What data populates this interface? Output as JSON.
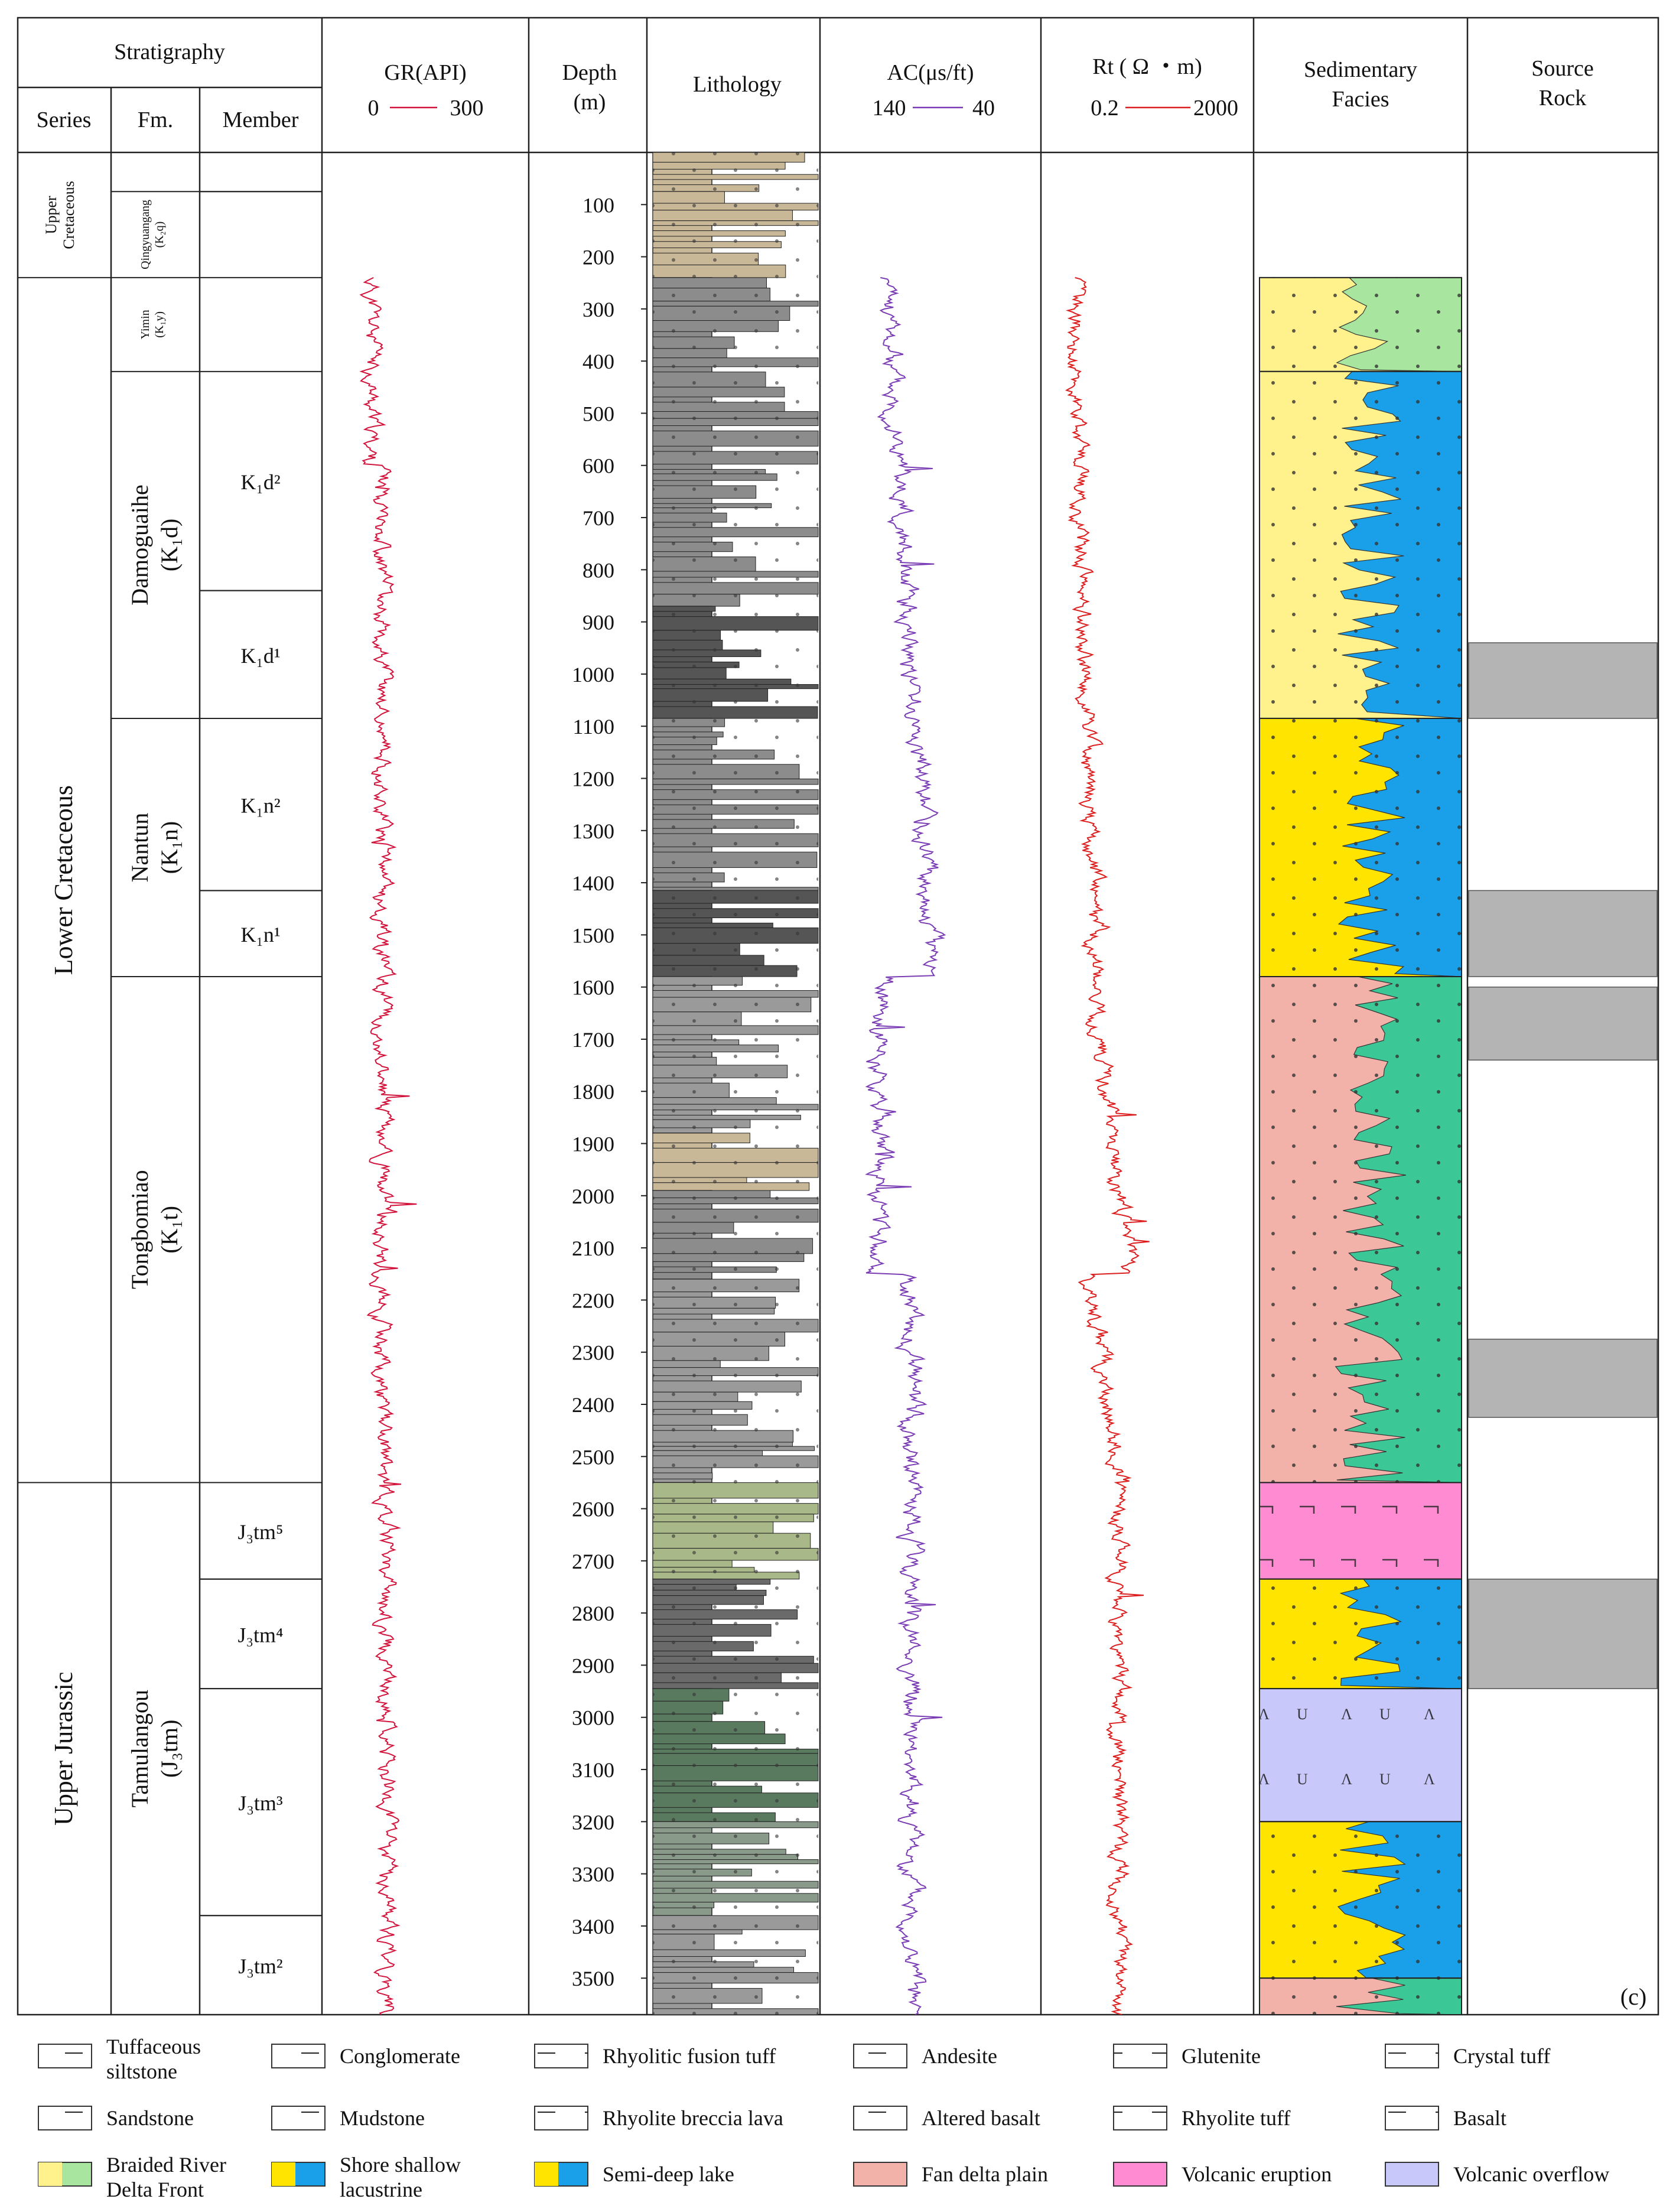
{
  "header": {
    "stratigraphy": "Stratigraphy",
    "series": "Series",
    "fm": "Fm.",
    "member": "Member",
    "gr_title": "GR(API)",
    "gr_min": "0",
    "gr_max": "300",
    "depth_title": "Depth",
    "depth_unit": "(m)",
    "lithology": "Lithology",
    "ac_title": "AC(μs/ft)",
    "ac_left": "140",
    "ac_right": "40",
    "rt_title": "Rt ( Ω ・m)",
    "rt_min": "0.2",
    "rt_max": "2000",
    "facies_line1": "Sedimentary",
    "facies_line2": "Facies",
    "source_line1": "Source",
    "source_line2": "Rock"
  },
  "series": [
    {
      "label_line1": "Upper",
      "label_line2": "Cretaceous",
      "top": 0,
      "bottom": 240
    },
    {
      "label_line1": "Lower Cretaceous",
      "label_line2": "",
      "top": 240,
      "bottom": 2550
    },
    {
      "label_line1": "Upper Jurassic",
      "label_line2": "",
      "top": 2550,
      "bottom": 3570
    }
  ],
  "formations": [
    {
      "name": "Qingyuangang",
      "code": "(K₂q)",
      "top": 75,
      "bottom": 240
    },
    {
      "name": "Yimin",
      "code": "(K₁y)",
      "top": 240,
      "bottom": 420
    },
    {
      "name": "Damoguaihe",
      "code": "(K₁d)",
      "top": 420,
      "bottom": 1085
    },
    {
      "name": "Nantun",
      "code": "(K₁n)",
      "top": 1085,
      "bottom": 1580
    },
    {
      "name": "Tongbomiao",
      "code": "(K₁t)",
      "top": 1580,
      "bottom": 2550
    },
    {
      "name": "Tamulangou",
      "code": "(J₃tm)",
      "top": 2550,
      "bottom": 3570
    }
  ],
  "members": [
    {
      "label": "K₁d²",
      "top": 420,
      "bottom": 840
    },
    {
      "label": "K₁d¹",
      "top": 840,
      "bottom": 1085
    },
    {
      "label": "K₁n²",
      "top": 1085,
      "bottom": 1415
    },
    {
      "label": "K₁n¹",
      "top": 1415,
      "bottom": 1580
    },
    {
      "label": "J₃tm⁵",
      "top": 2550,
      "bottom": 2735
    },
    {
      "label": "J₃tm⁴",
      "top": 2735,
      "bottom": 2945
    },
    {
      "label": "J₃tm³",
      "top": 2945,
      "bottom": 3380
    },
    {
      "label": "J₃tm²",
      "top": 3380,
      "bottom": 3570
    }
  ],
  "depth_ticks": [
    100,
    200,
    300,
    400,
    500,
    600,
    700,
    800,
    900,
    1000,
    1100,
    1200,
    1300,
    1400,
    1500,
    1600,
    1700,
    1800,
    1900,
    2000,
    2100,
    2200,
    2300,
    2400,
    2500,
    2600,
    2700,
    2800,
    2900,
    3000,
    3100,
    3200,
    3300,
    3400,
    3500
  ],
  "depth_range": [
    0,
    3570
  ],
  "lithology_zones": [
    {
      "top": 0,
      "bottom": 75,
      "color": "#c8b898"
    },
    {
      "top": 75,
      "bottom": 240,
      "color": "#c8b898"
    },
    {
      "top": 240,
      "bottom": 870,
      "color": "#8c8c8c"
    },
    {
      "top": 870,
      "bottom": 1085,
      "color": "#555555"
    },
    {
      "top": 1085,
      "bottom": 1415,
      "color": "#8c8c8c"
    },
    {
      "top": 1415,
      "bottom": 1580,
      "color": "#555555"
    },
    {
      "top": 1580,
      "bottom": 1880,
      "color": "#9a9a9a"
    },
    {
      "top": 1880,
      "bottom": 1990,
      "color": "#c8b898"
    },
    {
      "top": 1990,
      "bottom": 2160,
      "color": "#8c8c8c"
    },
    {
      "top": 2160,
      "bottom": 2550,
      "color": "#9a9a9a"
    },
    {
      "top": 2550,
      "bottom": 2735,
      "color": "#a8b888"
    },
    {
      "top": 2735,
      "bottom": 2945,
      "color": "#6a6a6a"
    },
    {
      "top": 2945,
      "bottom": 3200,
      "color": "#5a7a60"
    },
    {
      "top": 3200,
      "bottom": 3380,
      "color": "#8a9a8a"
    },
    {
      "top": 3380,
      "bottom": 3570,
      "color": "#9a9a9a"
    }
  ],
  "facies_zones": [
    {
      "type": "braided-delta-front",
      "top": 240,
      "bottom": 420
    },
    {
      "type": "semi-deep-lake",
      "top": 420,
      "bottom": 1085
    },
    {
      "type": "shore-shallow-lacustrine",
      "top": 1085,
      "bottom": 1580
    },
    {
      "type": "fan-delta-plain",
      "top": 1580,
      "bottom": 2550
    },
    {
      "type": "volcanic-eruption",
      "top": 2550,
      "bottom": 2735
    },
    {
      "type": "shore-shallow-lacustrine",
      "top": 2735,
      "bottom": 2945
    },
    {
      "type": "volcanic-overflow",
      "top": 2945,
      "bottom": 3200
    },
    {
      "type": "shore-shallow-lacustrine",
      "top": 3200,
      "bottom": 3500
    },
    {
      "type": "fan-delta-plain",
      "top": 3500,
      "bottom": 3570
    }
  ],
  "source_rock": [
    {
      "top": 940,
      "bottom": 1085
    },
    {
      "top": 1415,
      "bottom": 1580
    },
    {
      "top": 1600,
      "bottom": 1740
    },
    {
      "top": 2275,
      "bottom": 2425
    },
    {
      "top": 2735,
      "bottom": 2945
    }
  ],
  "panel_label": "(c)",
  "colors": {
    "gr": "#d2143c",
    "ac": "#7a3cb4",
    "rt": "#dc1e1e",
    "source_rock": "#b4b4b4",
    "fan_delta": "#f2b2aa",
    "fan_delta_edge": "#3cc896",
    "lake_blue": "#1aa0e8",
    "shore_yellow": "#fff28c",
    "bright_yellow": "#ffe400",
    "braided_green": "#a8e6a0",
    "eruption_pink": "#ff8cd2",
    "overflow_lavender": "#c8c8fa"
  },
  "legend": [
    {
      "key": "tuffaceous-siltstone",
      "label": "Tuffaceous siltstone",
      "label_line1": "Tuffaceous",
      "label_line2": "siltstone"
    },
    {
      "key": "conglomerate",
      "label": "Conglomerate"
    },
    {
      "key": "rhyolitic-fusion-tuff",
      "label": "Rhyolitic fusion tuff"
    },
    {
      "key": "andesite",
      "label": "Andesite"
    },
    {
      "key": "glutenite",
      "label": "Glutenite"
    },
    {
      "key": "crystal-tuff",
      "label": "Crystal tuff"
    },
    {
      "key": "sandstone",
      "label": "Sandstone"
    },
    {
      "key": "mudstone",
      "label": "Mudstone"
    },
    {
      "key": "rhyolite-breccia-lava",
      "label": "Rhyolite breccia lava"
    },
    {
      "key": "altered-basalt",
      "label": "Altered basalt"
    },
    {
      "key": "rhyolite-tuff",
      "label": "Rhyolite tuff"
    },
    {
      "key": "basalt",
      "label": "Basalt"
    },
    {
      "key": "braided-delta-front",
      "label": "Braided River Delta Front",
      "label_line1": "Braided River",
      "label_line2": "Delta Front"
    },
    {
      "key": "shore-shallow-lacustrine",
      "label": "Shore shallow lacustrine",
      "label_line1": "Shore shallow",
      "label_line2": "lacustrine"
    },
    {
      "key": "semi-deep-lake",
      "label": "Semi-deep lake"
    },
    {
      "key": "fan-delta-plain",
      "label": "Fan delta plain"
    },
    {
      "key": "volcanic-eruption",
      "label": "Volcanic eruption"
    },
    {
      "key": "volcanic-overflow",
      "label": "Volcanic overflow"
    }
  ]
}
